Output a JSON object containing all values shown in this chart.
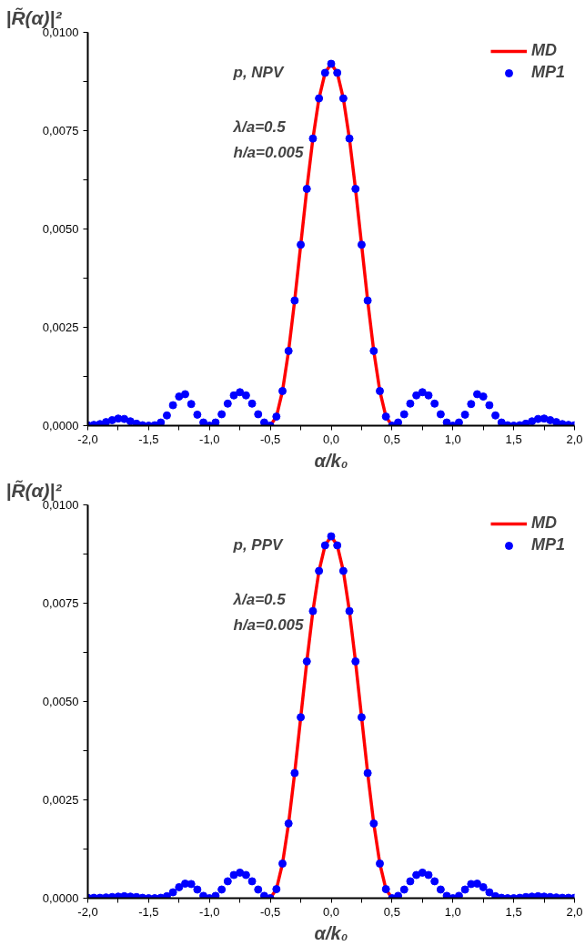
{
  "chart_data": [
    {
      "type": "line",
      "xlabel": "α/k₀",
      "ylabel": "|R̃(α)|²",
      "xlim": [
        -2,
        2
      ],
      "ylim": [
        0,
        0.01
      ],
      "xticks": [
        {
          "value": -2,
          "label": "-2,0"
        },
        {
          "value": -1.75,
          "label": null
        },
        {
          "value": -1.5,
          "label": "-1,5"
        },
        {
          "value": -1.25,
          "label": null
        },
        {
          "value": -1,
          "label": "-1,0"
        },
        {
          "value": -0.75,
          "label": null
        },
        {
          "value": -0.5,
          "label": "-0,5"
        },
        {
          "value": -0.25,
          "label": null
        },
        {
          "value": 0,
          "label": "0,0"
        },
        {
          "value": 0.25,
          "label": null
        },
        {
          "value": 0.5,
          "label": "0,5"
        },
        {
          "value": 0.75,
          "label": null
        },
        {
          "value": 1,
          "label": "1,0"
        },
        {
          "value": 1.25,
          "label": null
        },
        {
          "value": 1.5,
          "label": "1,5"
        },
        {
          "value": 1.75,
          "label": null
        },
        {
          "value": 2,
          "label": "2,0"
        }
      ],
      "yticks": [
        {
          "value": 0,
          "label": "0,0000"
        },
        {
          "value": 0.00125,
          "label": null
        },
        {
          "value": 0.0025,
          "label": "0,0025"
        },
        {
          "value": 0.00375,
          "label": null
        },
        {
          "value": 0.005,
          "label": "0,0050"
        },
        {
          "value": 0.00625,
          "label": null
        },
        {
          "value": 0.0075,
          "label": "0,0075"
        },
        {
          "value": 0.00875,
          "label": null
        },
        {
          "value": 0.01,
          "label": "0,0100"
        }
      ],
      "x": [
        -2,
        -1.95,
        -1.9,
        -1.85,
        -1.8,
        -1.75,
        -1.7,
        -1.65,
        -1.6,
        -1.55,
        -1.5,
        -1.45,
        -1.4,
        -1.35,
        -1.3,
        -1.25,
        -1.2,
        -1.15,
        -1.1,
        -1.05,
        -1,
        -0.95,
        -0.9,
        -0.85,
        -0.8,
        -0.75,
        -0.7,
        -0.65,
        -0.6,
        -0.55,
        -0.5,
        -0.45,
        -0.4,
        -0.35,
        -0.3,
        -0.25,
        -0.2,
        -0.15,
        -0.1,
        -0.05,
        0,
        0.05,
        0.1,
        0.15,
        0.2,
        0.25,
        0.3,
        0.35,
        0.4,
        0.45,
        0.5,
        0.55,
        0.6,
        0.65,
        0.7,
        0.75,
        0.8,
        0.85,
        0.9,
        0.95,
        1,
        1.05,
        1.1,
        1.15,
        1.2,
        1.25,
        1.3,
        1.35,
        1.4,
        1.45,
        1.5,
        1.55,
        1.6,
        1.65,
        1.7,
        1.75,
        1.8,
        1.85,
        1.9,
        1.95,
        2
      ],
      "series": [
        {
          "name": "MD",
          "color": "#ff0000",
          "line_style": "solid",
          "values": [
            null,
            null,
            null,
            null,
            null,
            null,
            null,
            null,
            null,
            null,
            null,
            null,
            null,
            null,
            null,
            null,
            null,
            null,
            null,
            null,
            null,
            null,
            null,
            null,
            null,
            null,
            null,
            null,
            null,
            null,
            0,
            0.00023,
            0.00088,
            0.0019,
            0.00318,
            0.0046,
            0.00602,
            0.0073,
            0.00832,
            0.00897,
            0.0092,
            0.00897,
            0.00832,
            0.0073,
            0.00602,
            0.0046,
            0.00318,
            0.0019,
            0.00088,
            0.00023,
            0,
            null,
            null,
            null,
            null,
            null,
            null,
            null,
            null,
            null,
            null,
            null,
            null,
            null,
            null,
            null,
            null,
            null,
            null,
            null,
            null,
            null,
            null,
            null,
            null,
            null,
            null,
            null,
            null,
            null,
            null
          ]
        },
        {
          "name": "MP1",
          "type": "scatter",
          "color": "#0000ff",
          "marker": "circle",
          "values": [
            1e-05,
            2e-05,
            4e-05,
            9e-05,
            0.00014,
            0.00018,
            0.00017,
            0.00011,
            5e-05,
            1e-05,
            0,
            1e-05,
            8e-05,
            0.00026,
            0.00052,
            0.00074,
            0.0008,
            0.00055,
            0.00028,
            8e-05,
            0,
            8e-05,
            0.00029,
            0.00056,
            0.00077,
            0.00085,
            0.00077,
            0.00056,
            0.00029,
            8e-05,
            0,
            0.00023,
            0.00088,
            0.0019,
            0.00318,
            0.0046,
            0.00602,
            0.0073,
            0.00832,
            0.00897,
            0.0092,
            0.00897,
            0.00832,
            0.0073,
            0.00602,
            0.0046,
            0.00318,
            0.0019,
            0.00088,
            0.00023,
            0,
            8e-05,
            0.00029,
            0.00056,
            0.00077,
            0.00085,
            0.00077,
            0.00056,
            0.00029,
            8e-05,
            0,
            8e-05,
            0.00028,
            0.00055,
            0.0008,
            0.00074,
            0.00052,
            0.00026,
            8e-05,
            1e-05,
            0,
            1e-05,
            5e-05,
            0.00011,
            0.00017,
            0.00018,
            0.00014,
            9e-05,
            4e-05,
            2e-05,
            1e-05
          ]
        }
      ],
      "annotations": [
        "p, NPV",
        "λ/a=0.5",
        "h/a=0.005"
      ],
      "legend": "top right",
      "grid": false
    },
    {
      "type": "line",
      "xlabel": "α/k₀",
      "ylabel": "|R̃(α)|²",
      "xlim": [
        -2,
        2
      ],
      "ylim": [
        0,
        0.01
      ],
      "xticks": [
        {
          "value": -2,
          "label": "-2,0"
        },
        {
          "value": -1.75,
          "label": null
        },
        {
          "value": -1.5,
          "label": "-1,5"
        },
        {
          "value": -1.25,
          "label": null
        },
        {
          "value": -1,
          "label": "-1,0"
        },
        {
          "value": -0.75,
          "label": null
        },
        {
          "value": -0.5,
          "label": "-0,5"
        },
        {
          "value": -0.25,
          "label": null
        },
        {
          "value": 0,
          "label": "0,0"
        },
        {
          "value": 0.25,
          "label": null
        },
        {
          "value": 0.5,
          "label": "0,5"
        },
        {
          "value": 0.75,
          "label": null
        },
        {
          "value": 1,
          "label": "1,0"
        },
        {
          "value": 1.25,
          "label": null
        },
        {
          "value": 1.5,
          "label": "1,5"
        },
        {
          "value": 1.75,
          "label": null
        },
        {
          "value": 2,
          "label": "2,0"
        }
      ],
      "yticks": [
        {
          "value": 0,
          "label": "0,0000"
        },
        {
          "value": 0.00125,
          "label": null
        },
        {
          "value": 0.0025,
          "label": "0,0025"
        },
        {
          "value": 0.00375,
          "label": null
        },
        {
          "value": 0.005,
          "label": "0,0050"
        },
        {
          "value": 0.00625,
          "label": null
        },
        {
          "value": 0.0075,
          "label": "0,0075"
        },
        {
          "value": 0.00875,
          "label": null
        },
        {
          "value": 0.01,
          "label": "0,0100"
        }
      ],
      "x": [
        -2,
        -1.95,
        -1.9,
        -1.85,
        -1.8,
        -1.75,
        -1.7,
        -1.65,
        -1.6,
        -1.55,
        -1.5,
        -1.45,
        -1.4,
        -1.35,
        -1.3,
        -1.25,
        -1.2,
        -1.15,
        -1.1,
        -1.05,
        -1,
        -0.95,
        -0.9,
        -0.85,
        -0.8,
        -0.75,
        -0.7,
        -0.65,
        -0.6,
        -0.55,
        -0.5,
        -0.45,
        -0.4,
        -0.35,
        -0.3,
        -0.25,
        -0.2,
        -0.15,
        -0.1,
        -0.05,
        0,
        0.05,
        0.1,
        0.15,
        0.2,
        0.25,
        0.3,
        0.35,
        0.4,
        0.45,
        0.5,
        0.55,
        0.6,
        0.65,
        0.7,
        0.75,
        0.8,
        0.85,
        0.9,
        0.95,
        1,
        1.05,
        1.1,
        1.15,
        1.2,
        1.25,
        1.3,
        1.35,
        1.4,
        1.45,
        1.5,
        1.55,
        1.6,
        1.65,
        1.7,
        1.75,
        1.8,
        1.85,
        1.9,
        1.95,
        2
      ],
      "series": [
        {
          "name": "MD",
          "color": "#ff0000",
          "line_style": "solid",
          "values": [
            null,
            null,
            null,
            null,
            null,
            null,
            null,
            null,
            null,
            null,
            null,
            null,
            null,
            null,
            null,
            null,
            null,
            null,
            null,
            null,
            null,
            null,
            null,
            null,
            null,
            null,
            null,
            null,
            null,
            null,
            0,
            0.00023,
            0.00088,
            0.0019,
            0.00318,
            0.0046,
            0.00602,
            0.0073,
            0.00832,
            0.00897,
            0.0092,
            0.00897,
            0.00832,
            0.0073,
            0.00602,
            0.0046,
            0.00318,
            0.0019,
            0.00088,
            0.00023,
            0,
            null,
            null,
            null,
            null,
            null,
            null,
            null,
            null,
            null,
            null,
            null,
            null,
            null,
            null,
            null,
            null,
            null,
            null,
            null,
            null,
            null,
            null,
            null,
            null,
            null,
            null,
            null,
            null,
            null,
            null
          ]
        },
        {
          "name": "MP1",
          "type": "scatter",
          "color": "#0000ff",
          "marker": "circle",
          "values": [
            1e-05,
            1e-05,
            1e-05,
            2e-05,
            3e-05,
            4e-05,
            5e-05,
            4e-05,
            3e-05,
            1e-05,
            0,
            0,
            1e-05,
            5e-05,
            0.00015,
            0.00028,
            0.00037,
            0.00036,
            0.00022,
            6e-05,
            0,
            6e-05,
            0.00022,
            0.00043,
            0.00059,
            0.00065,
            0.00059,
            0.00043,
            0.00022,
            6e-05,
            0,
            0.00023,
            0.00088,
            0.0019,
            0.00318,
            0.0046,
            0.00602,
            0.0073,
            0.00832,
            0.00897,
            0.0092,
            0.00897,
            0.00832,
            0.0073,
            0.00602,
            0.0046,
            0.00318,
            0.0019,
            0.00088,
            0.00023,
            0,
            6e-05,
            0.00022,
            0.00043,
            0.00059,
            0.00065,
            0.00059,
            0.00043,
            0.00022,
            6e-05,
            0,
            6e-05,
            0.00022,
            0.00036,
            0.00037,
            0.00028,
            0.00015,
            5e-05,
            1e-05,
            0,
            0,
            1e-05,
            3e-05,
            4e-05,
            5e-05,
            4e-05,
            3e-05,
            2e-05,
            1e-05,
            1e-05,
            1e-05
          ]
        }
      ],
      "annotations": [
        "p, PPV",
        "λ/a=0.5",
        "h/a=0.005"
      ],
      "legend": "top right",
      "grid": false
    }
  ]
}
